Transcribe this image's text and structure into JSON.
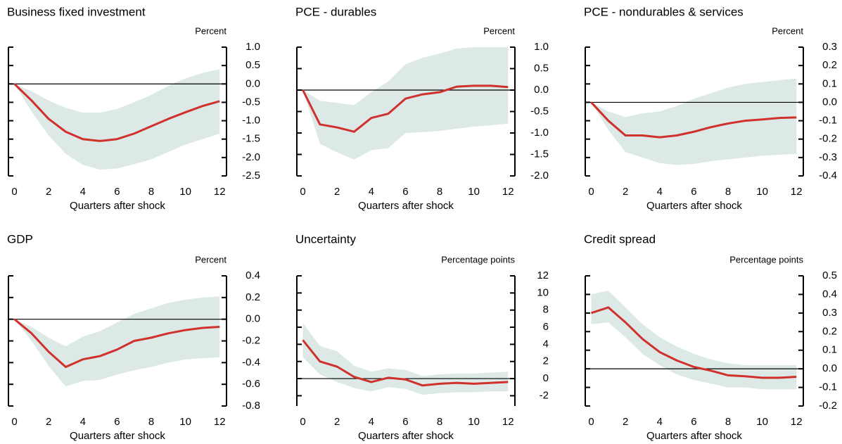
{
  "chart_data": [
    {
      "type": "line",
      "title": "Business fixed investment",
      "ylabel": "Percent",
      "xlabel": "Quarters after shock",
      "x": [
        0,
        1,
        2,
        3,
        4,
        5,
        6,
        7,
        8,
        9,
        10,
        11,
        12
      ],
      "xlim": [
        -0.35,
        12.4
      ],
      "xticks": [
        0,
        2,
        4,
        6,
        8,
        10,
        12
      ],
      "ylim": [
        -2.5,
        1
      ],
      "yticks": [
        {
          "value": 1,
          "label": "1.0"
        },
        0.5,
        {
          "value": 0,
          "label": "0.0"
        },
        -0.5,
        {
          "value": -1,
          "label": "-1.0"
        },
        -1.5,
        {
          "value": -2,
          "label": "-2.0"
        },
        -2.5
      ],
      "zero_line": true,
      "series": [
        {
          "color": "#d0312d",
          "values": [
            0,
            -0.45,
            -0.95,
            -1.3,
            -1.5,
            -1.55,
            -1.5,
            -1.35,
            -1.15,
            -0.95,
            -0.77,
            -0.6,
            -0.47
          ]
        }
      ],
      "band": {
        "color": "#dce9e7",
        "upper": [
          0,
          -0.2,
          -0.45,
          -0.65,
          -0.78,
          -0.78,
          -0.68,
          -0.5,
          -0.3,
          -0.05,
          0.15,
          0.3,
          0.4
        ],
        "lower": [
          0,
          -0.75,
          -1.4,
          -1.9,
          -2.2,
          -2.33,
          -2.3,
          -2.18,
          -2.05,
          -1.85,
          -1.65,
          -1.5,
          -1.35
        ]
      }
    },
    {
      "type": "line",
      "title": "PCE - durables",
      "ylabel": "Percent",
      "xlabel": "Quarters after shock",
      "x": [
        0,
        1,
        2,
        3,
        4,
        5,
        6,
        7,
        8,
        9,
        10,
        11,
        12
      ],
      "xlim": [
        -0.35,
        12.4
      ],
      "xticks": [
        0,
        2,
        4,
        6,
        8,
        10,
        12
      ],
      "ylim": [
        -2,
        1
      ],
      "yticks": [
        {
          "value": 1,
          "label": "1.0"
        },
        0.5,
        {
          "value": 0,
          "label": "0.0"
        },
        -0.5,
        {
          "value": -1,
          "label": "-1.0"
        },
        -1.5,
        {
          "value": -2,
          "label": "-2.0"
        }
      ],
      "zero_line": true,
      "series": [
        {
          "color": "#d0312d",
          "values": [
            0,
            -0.8,
            -0.87,
            -0.97,
            -0.65,
            -0.55,
            -0.2,
            -0.1,
            -0.05,
            0.08,
            0.1,
            0.1,
            0.07
          ]
        }
      ],
      "band": {
        "color": "#dce9e7",
        "upper": [
          0,
          -0.25,
          -0.3,
          -0.35,
          -0.05,
          0.2,
          0.6,
          0.75,
          0.85,
          0.97,
          1,
          1,
          1
        ],
        "lower": [
          0,
          -1.25,
          -1.45,
          -1.62,
          -1.4,
          -1.35,
          -1,
          -0.98,
          -0.95,
          -0.9,
          -0.85,
          -0.82,
          -0.78
        ]
      }
    },
    {
      "type": "line",
      "title": "PCE - nondurables & services",
      "ylabel": "Percent",
      "xlabel": "Quarters after shock",
      "x": [
        0,
        1,
        2,
        3,
        4,
        5,
        6,
        7,
        8,
        9,
        10,
        11,
        12
      ],
      "xlim": [
        -0.35,
        12.4
      ],
      "xticks": [
        0,
        2,
        4,
        6,
        8,
        10,
        12
      ],
      "ylim": [
        -0.4,
        0.3
      ],
      "yticks": [
        0.3,
        0.2,
        0.1,
        {
          "value": 0,
          "label": "0.0"
        },
        -0.1,
        -0.2,
        -0.3,
        -0.4
      ],
      "zero_line": true,
      "series": [
        {
          "color": "#d0312d",
          "values": [
            0,
            -0.1,
            -0.18,
            -0.18,
            -0.19,
            -0.18,
            -0.16,
            -0.135,
            -0.115,
            -0.1,
            -0.093,
            -0.085,
            -0.082
          ]
        }
      ],
      "band": {
        "color": "#dce9e7",
        "upper": [
          0,
          -0.05,
          -0.08,
          -0.06,
          -0.05,
          -0.02,
          0.02,
          0.05,
          0.08,
          0.1,
          0.11,
          0.12,
          0.13
        ],
        "lower": [
          0,
          -0.15,
          -0.27,
          -0.3,
          -0.33,
          -0.34,
          -0.335,
          -0.32,
          -0.31,
          -0.3,
          -0.29,
          -0.285,
          -0.28
        ]
      }
    },
    {
      "type": "line",
      "title": "GDP",
      "ylabel": "Percent",
      "xlabel": "Quarters after shock",
      "x": [
        0,
        1,
        2,
        3,
        4,
        5,
        6,
        7,
        8,
        9,
        10,
        11,
        12
      ],
      "xlim": [
        -0.35,
        12.4
      ],
      "xticks": [
        0,
        2,
        4,
        6,
        8,
        10,
        12
      ],
      "ylim": [
        -0.8,
        0.4
      ],
      "yticks": [
        0.4,
        0.2,
        {
          "value": 0,
          "label": "0.0"
        },
        -0.2,
        -0.4,
        -0.6,
        -0.8
      ],
      "zero_line": true,
      "series": [
        {
          "color": "#d0312d",
          "values": [
            0,
            -0.13,
            -0.3,
            -0.44,
            -0.37,
            -0.34,
            -0.28,
            -0.2,
            -0.17,
            -0.13,
            -0.1,
            -0.08,
            -0.07
          ]
        }
      ],
      "band": {
        "color": "#dce9e7",
        "upper": [
          0,
          -0.07,
          -0.17,
          -0.25,
          -0.16,
          -0.11,
          -0.03,
          0.05,
          0.1,
          0.15,
          0.18,
          0.2,
          0.21
        ],
        "lower": [
          0,
          -0.2,
          -0.43,
          -0.62,
          -0.57,
          -0.56,
          -0.51,
          -0.47,
          -0.44,
          -0.4,
          -0.37,
          -0.36,
          -0.35
        ]
      }
    },
    {
      "type": "line",
      "title": "Uncertainty",
      "ylabel": "Percentage points",
      "xlabel": "Quarters after shock",
      "x": [
        0,
        1,
        2,
        3,
        4,
        5,
        6,
        7,
        8,
        9,
        10,
        11,
        12
      ],
      "xlim": [
        -0.35,
        12.4
      ],
      "xticks": [
        0,
        2,
        4,
        6,
        8,
        10,
        12
      ],
      "ylim": [
        -3.2,
        12
      ],
      "yticks": [
        12,
        10,
        8,
        6,
        4,
        2,
        0,
        -2
      ],
      "zero_line": true,
      "series": [
        {
          "color": "#d0312d",
          "values": [
            4.5,
            2,
            1.4,
            0.2,
            -0.4,
            0.1,
            -0.1,
            -0.8,
            -0.6,
            -0.5,
            -0.6,
            -0.5,
            -0.4
          ]
        }
      ],
      "band": {
        "color": "#dce9e7",
        "upper": [
          6.5,
          3.8,
          3.2,
          1.5,
          0.8,
          1.2,
          1,
          0.3,
          0.5,
          0.6,
          0.6,
          0.7,
          0.8
        ],
        "lower": [
          2.5,
          0.5,
          -0.4,
          -1.1,
          -1.5,
          -1,
          -1.2,
          -1.9,
          -1.7,
          -1.6,
          -1.6,
          -1.5,
          -1.5
        ]
      }
    },
    {
      "type": "line",
      "title": "Credit spread",
      "ylabel": "Percentage points",
      "xlabel": "Quarters after shock",
      "x": [
        0,
        1,
        2,
        3,
        4,
        5,
        6,
        7,
        8,
        9,
        10,
        11,
        12
      ],
      "xlim": [
        -0.35,
        12.4
      ],
      "xticks": [
        0,
        2,
        4,
        6,
        8,
        10,
        12
      ],
      "ylim": [
        -0.2,
        0.5
      ],
      "yticks": [
        0.5,
        0.4,
        0.3,
        0.2,
        0.1,
        {
          "value": 0,
          "label": "0.0"
        },
        -0.1,
        -0.2
      ],
      "zero_line": true,
      "series": [
        {
          "color": "#d0312d",
          "values": [
            0.3,
            0.33,
            0.25,
            0.16,
            0.09,
            0.045,
            0.01,
            -0.01,
            -0.035,
            -0.04,
            -0.048,
            -0.048,
            -0.043
          ]
        }
      ],
      "band": {
        "color": "#dce9e7",
        "upper": [
          0.4,
          0.42,
          0.33,
          0.24,
          0.17,
          0.12,
          0.08,
          0.05,
          0.03,
          0.02,
          0.02,
          0.02,
          0.02
        ],
        "lower": [
          0.24,
          0.25,
          0.17,
          0.08,
          0.02,
          -0.03,
          -0.06,
          -0.08,
          -0.1,
          -0.1,
          -0.11,
          -0.11,
          -0.11
        ]
      }
    }
  ]
}
